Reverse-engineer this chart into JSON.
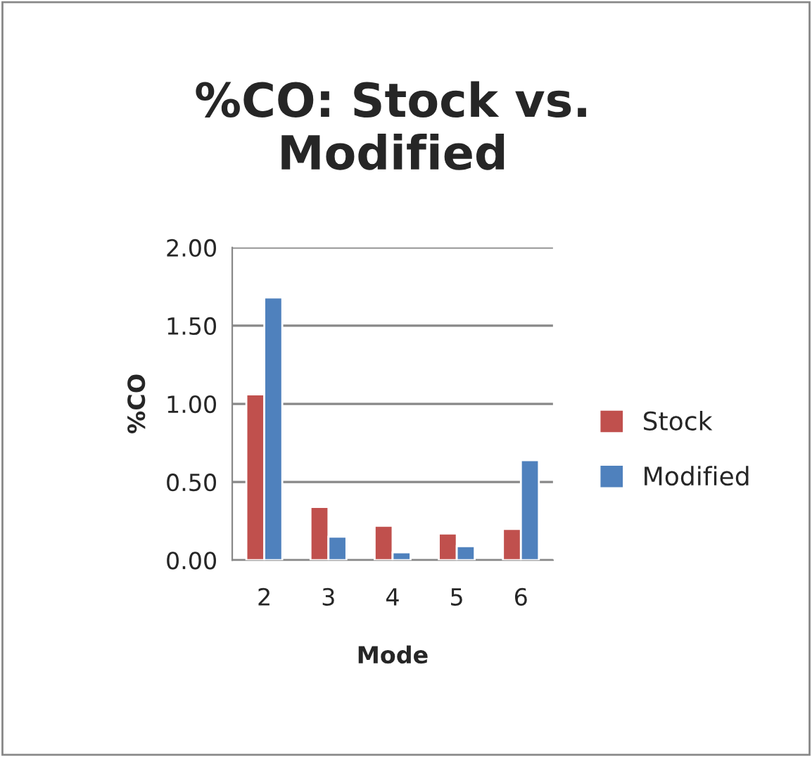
{
  "chart_data": {
    "type": "bar",
    "title": "%CO: Stock vs.\nModified",
    "xlabel": "Mode",
    "ylabel": "%CO",
    "categories": [
      "2",
      "3",
      "4",
      "5",
      "6"
    ],
    "series": [
      {
        "name": "Stock",
        "color": "#c0504d",
        "values": [
          1.06,
          0.34,
          0.22,
          0.17,
          0.2
        ]
      },
      {
        "name": "Modified",
        "color": "#4f81bd",
        "values": [
          1.68,
          0.15,
          0.05,
          0.09,
          0.64
        ]
      }
    ],
    "ylim": [
      0,
      2
    ],
    "yticks": [
      {
        "value": 0,
        "label": "0.00"
      },
      {
        "value": 0.5,
        "label": "0.50"
      },
      {
        "value": 1,
        "label": "1.00"
      },
      {
        "value": 1.5,
        "label": "1.50"
      },
      {
        "value": 2,
        "label": "2.00"
      }
    ],
    "grid": "y",
    "legend": "right"
  }
}
